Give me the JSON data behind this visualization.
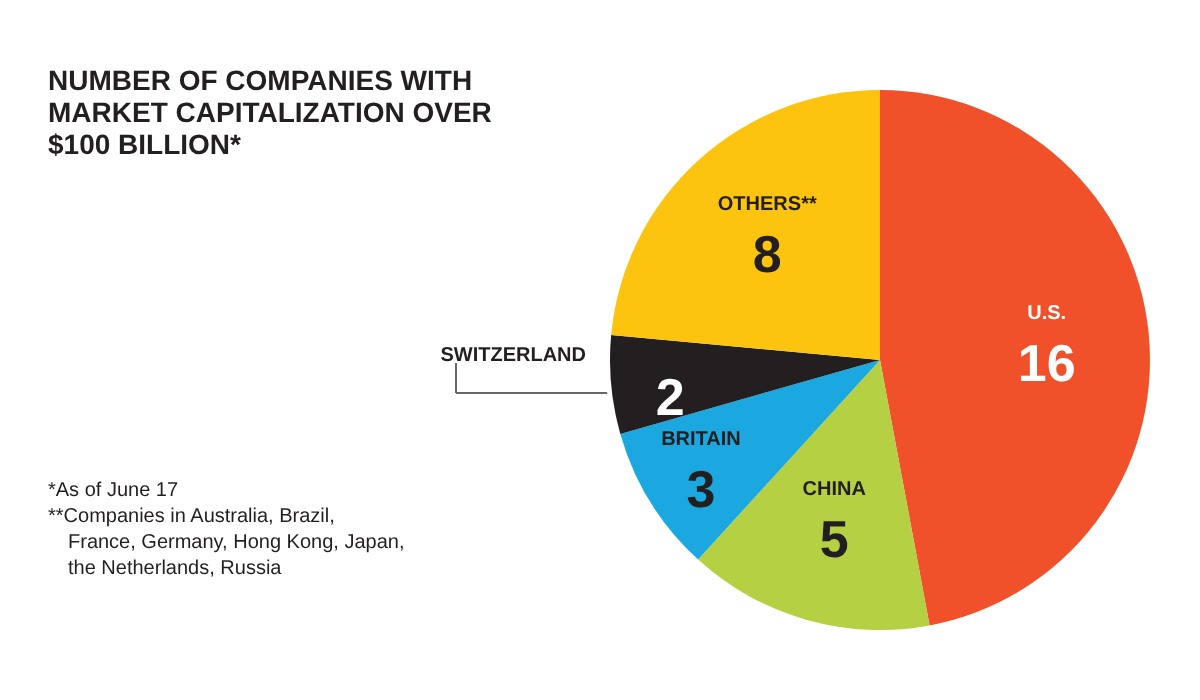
{
  "chart_data": {
    "type": "pie",
    "title": "NUMBER OF COMPANIES WITH MARKET CAPITALIZATION OVER $100 BILLION*",
    "categories": [
      "U.S.",
      "CHINA",
      "BRITAIN",
      "SWITZERLAND",
      "OTHERS**"
    ],
    "values": [
      16,
      5,
      3,
      2,
      8
    ],
    "colors": [
      "#f0502a",
      "#b5d043",
      "#1ba8e0",
      "#231f20",
      "#fcc30f"
    ],
    "data_labels": true,
    "annotations": [
      "*As of June 17",
      "**Companies in Australia, Brazil, France, Germany, Hong Kong, Japan, the Netherlands, Russia"
    ]
  }
}
